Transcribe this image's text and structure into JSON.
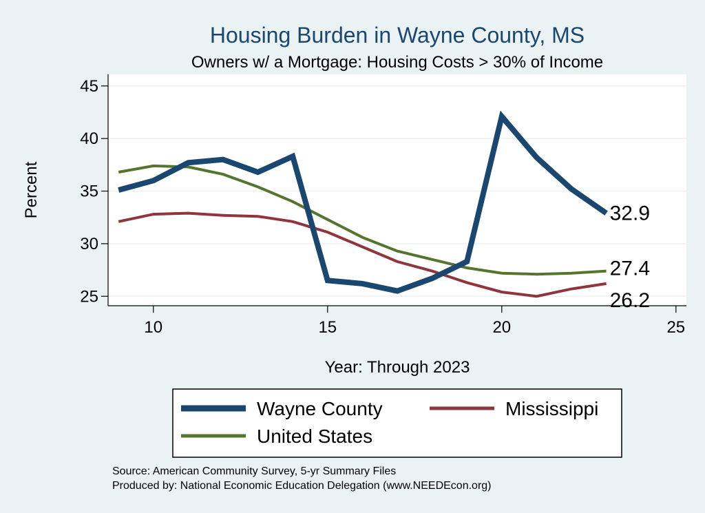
{
  "chart_data": {
    "type": "line",
    "title": "Housing Burden in Wayne County, MS",
    "subtitle": "Owners w/ a Mortgage: Housing Costs > 30% of Income",
    "xlabel": "Year: Through 2023",
    "ylabel": "Percent",
    "xlim": [
      8.7,
      25.3
    ],
    "ylim": [
      24.1,
      46.1
    ],
    "x_ticks": [
      10,
      15,
      20,
      25
    ],
    "y_ticks": [
      25,
      30,
      35,
      40,
      45
    ],
    "grid": true,
    "legend_position": "bottom",
    "x": [
      9,
      10,
      11,
      12,
      13,
      14,
      15,
      16,
      17,
      18,
      19,
      20,
      21,
      22,
      23
    ],
    "series": [
      {
        "name": "Wayne County",
        "color": "#1a476f",
        "values": [
          35.1,
          36.0,
          37.7,
          38.0,
          36.8,
          38.3,
          26.5,
          26.2,
          25.5,
          26.7,
          28.3,
          42.1,
          38.2,
          35.2,
          32.9
        ],
        "end_label": "32.9"
      },
      {
        "name": "Mississippi",
        "color": "#90353b",
        "values": [
          32.1,
          32.8,
          32.9,
          32.7,
          32.6,
          32.1,
          31.1,
          29.7,
          28.3,
          27.4,
          26.3,
          25.4,
          25.0,
          25.7,
          26.2
        ],
        "end_label": "26.2"
      },
      {
        "name": "United States",
        "color": "#55752f",
        "values": [
          36.8,
          37.4,
          37.3,
          36.6,
          35.4,
          34.0,
          32.3,
          30.6,
          29.3,
          28.5,
          27.7,
          27.2,
          27.1,
          27.2,
          27.4
        ],
        "end_label": "27.4"
      }
    ]
  },
  "source_lines": [
    "Source: American Community Survey, 5-yr Summary Files",
    "Produced by: National Economic Education Delegation (www.NEEDEcon.org)"
  ]
}
